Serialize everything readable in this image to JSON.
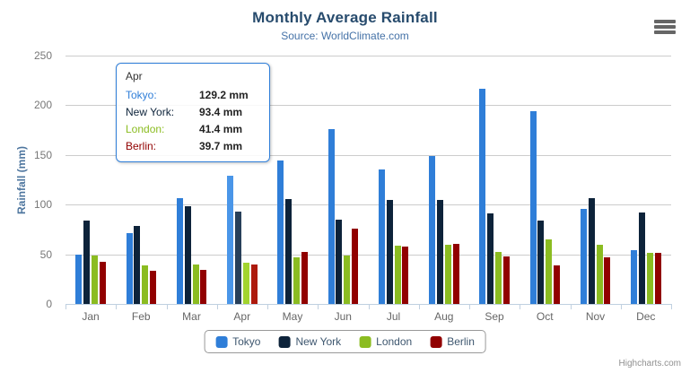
{
  "header": {
    "title": "Monthly Average Rainfall",
    "subtitle": "Source: WorldClimate.com"
  },
  "y_axis": {
    "title": "Rainfall (mm)",
    "ticks": [
      0,
      50,
      100,
      150,
      200,
      250
    ]
  },
  "x_axis": {
    "categories": [
      "Jan",
      "Feb",
      "Mar",
      "Apr",
      "May",
      "Jun",
      "Jul",
      "Aug",
      "Sep",
      "Oct",
      "Nov",
      "Dec"
    ]
  },
  "legend": {
    "items": [
      {
        "label": "Tokyo",
        "color": "#2f7ed8"
      },
      {
        "label": "New York",
        "color": "#0d233a"
      },
      {
        "label": "London",
        "color": "#8bbc21"
      },
      {
        "label": "Berlin",
        "color": "#910000"
      }
    ]
  },
  "tooltip": {
    "header": "Apr",
    "rows": [
      {
        "label": "Tokyo:",
        "value": "129.2 mm",
        "color": "#2f7ed8"
      },
      {
        "label": "New York:",
        "value": "93.4 mm",
        "color": "#0d233a"
      },
      {
        "label": "London:",
        "value": "41.4 mm",
        "color": "#8bbc21"
      },
      {
        "label": "Berlin:",
        "value": "39.7 mm",
        "color": "#910000"
      }
    ]
  },
  "credits": {
    "label": "Highcharts.com"
  },
  "chart_data": {
    "type": "bar",
    "title": "Monthly Average Rainfall",
    "subtitle": "Source: WorldClimate.com",
    "xlabel": "",
    "ylabel": "Rainfall (mm)",
    "ylim": [
      0,
      250
    ],
    "grid": true,
    "legend_position": "bottom",
    "hovered_category": "Apr",
    "hovered_category_index": 3,
    "categories": [
      "Jan",
      "Feb",
      "Mar",
      "Apr",
      "May",
      "Jun",
      "Jul",
      "Aug",
      "Sep",
      "Oct",
      "Nov",
      "Dec"
    ],
    "series": [
      {
        "name": "Tokyo",
        "color": "#2f7ed8",
        "hover_color": "#4a96e8",
        "values": [
          49.9,
          71.5,
          106.4,
          129.2,
          144.0,
          176.0,
          135.6,
          148.5,
          216.4,
          194.1,
          95.6,
          54.4
        ]
      },
      {
        "name": "New York",
        "color": "#0d233a",
        "hover_color": "#28405a",
        "values": [
          83.6,
          78.8,
          98.5,
          93.4,
          106.0,
          84.5,
          105.0,
          104.3,
          91.2,
          83.5,
          106.6,
          92.3
        ]
      },
      {
        "name": "London",
        "color": "#8bbc21",
        "hover_color": "#a2d42e",
        "values": [
          48.9,
          38.8,
          39.3,
          41.4,
          47.0,
          48.3,
          59.0,
          59.6,
          52.4,
          65.2,
          59.3,
          51.2
        ]
      },
      {
        "name": "Berlin",
        "color": "#910000",
        "hover_color": "#ad1a0d",
        "values": [
          42.4,
          33.2,
          34.5,
          39.7,
          52.6,
          75.5,
          57.4,
          60.4,
          47.6,
          39.1,
          46.8,
          51.1
        ]
      }
    ]
  }
}
